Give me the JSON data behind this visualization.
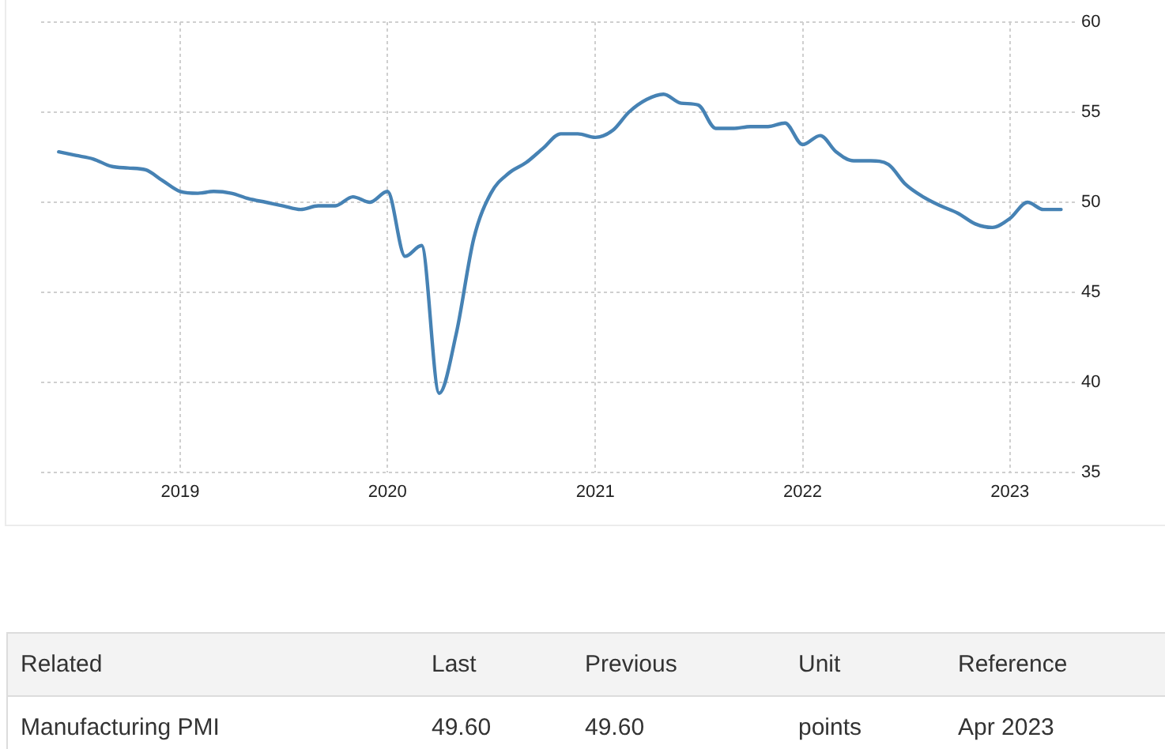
{
  "chart_data": [
    {
      "type": "line",
      "x": [
        "2018-06",
        "2018-07",
        "2018-08",
        "2018-09",
        "2018-10",
        "2018-11",
        "2018-12",
        "2019-01",
        "2019-02",
        "2019-03",
        "2019-04",
        "2019-05",
        "2019-06",
        "2019-07",
        "2019-08",
        "2019-09",
        "2019-10",
        "2019-11",
        "2019-12",
        "2020-01",
        "2020-02",
        "2020-03",
        "2020-04",
        "2020-05",
        "2020-06",
        "2020-07",
        "2020-08",
        "2020-09",
        "2020-10",
        "2020-11",
        "2020-12",
        "2021-01",
        "2021-02",
        "2021-03",
        "2021-04",
        "2021-05",
        "2021-06",
        "2021-07",
        "2021-08",
        "2021-09",
        "2021-10",
        "2021-11",
        "2021-12",
        "2022-01",
        "2022-02",
        "2022-03",
        "2022-04",
        "2022-05",
        "2022-06",
        "2022-07",
        "2022-08",
        "2022-09",
        "2022-10",
        "2022-11",
        "2022-12",
        "2023-01",
        "2023-02",
        "2023-03",
        "2023-04"
      ],
      "series": [
        {
          "color": "#4682b4",
          "values": [
            52.8,
            52.6,
            52.4,
            52.0,
            51.9,
            51.8,
            51.2,
            50.6,
            50.5,
            50.6,
            50.5,
            50.2,
            50.0,
            49.8,
            49.6,
            49.8,
            49.8,
            50.3,
            50.0,
            50.6,
            47.0,
            47.6,
            39.4,
            42.7,
            48.0,
            50.5,
            51.6,
            52.2,
            53.0,
            53.8,
            53.8,
            53.6,
            54.0,
            55.0,
            55.7,
            56.0,
            55.5,
            55.4,
            54.1,
            54.1,
            54.2,
            54.2,
            54.4,
            53.2,
            53.7,
            52.8,
            52.3,
            52.3,
            52.1,
            51.0,
            50.3,
            49.8,
            49.4,
            48.8,
            48.6,
            49.1,
            50.0,
            49.6,
            49.6
          ]
        }
      ],
      "xlim": [
        "2018-05",
        "2023-05"
      ],
      "xticks": [
        "2019",
        "2020",
        "2021",
        "2022",
        "2023"
      ],
      "ylim": [
        35,
        60
      ],
      "yticks": [
        35,
        40,
        45,
        50,
        55,
        60
      ],
      "grid": true
    },
    {
      "type": "other",
      "annotations": [
        "Related",
        "Last",
        "Previous",
        "Unit",
        "Reference",
        "Manufacturing PMI",
        "49.60",
        "49.60",
        "points",
        "Apr 2023"
      ]
    }
  ]
}
